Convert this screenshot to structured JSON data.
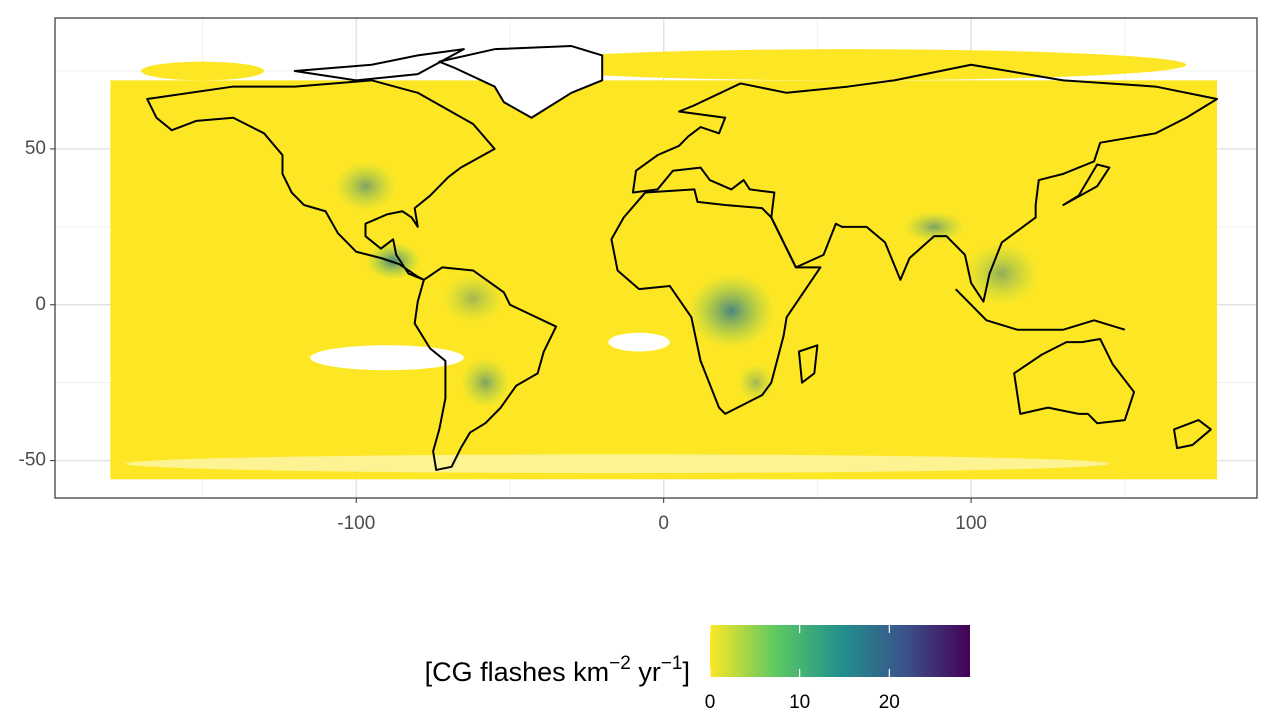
{
  "chart_data": {
    "type": "raster-map",
    "xlim": [
      -198,
      193
    ],
    "ylim": [
      -62,
      92
    ],
    "xticks": [
      -100,
      0,
      100
    ],
    "yticks": [
      -50,
      0,
      50
    ],
    "grid": true,
    "legend": {
      "position": "bottom",
      "title_parts": [
        {
          "text": "[CG flashes km"
        },
        {
          "text": "−2",
          "sup": true
        },
        {
          "text": " yr"
        },
        {
          "text": "−1",
          "sup": true
        },
        {
          "text": "]"
        }
      ],
      "lim": [
        0,
        29
      ],
      "ticks": [
        0,
        10,
        20
      ],
      "colors": [
        "#fde725",
        "#5ec962",
        "#21918c",
        "#3b528b",
        "#440154"
      ]
    }
  }
}
